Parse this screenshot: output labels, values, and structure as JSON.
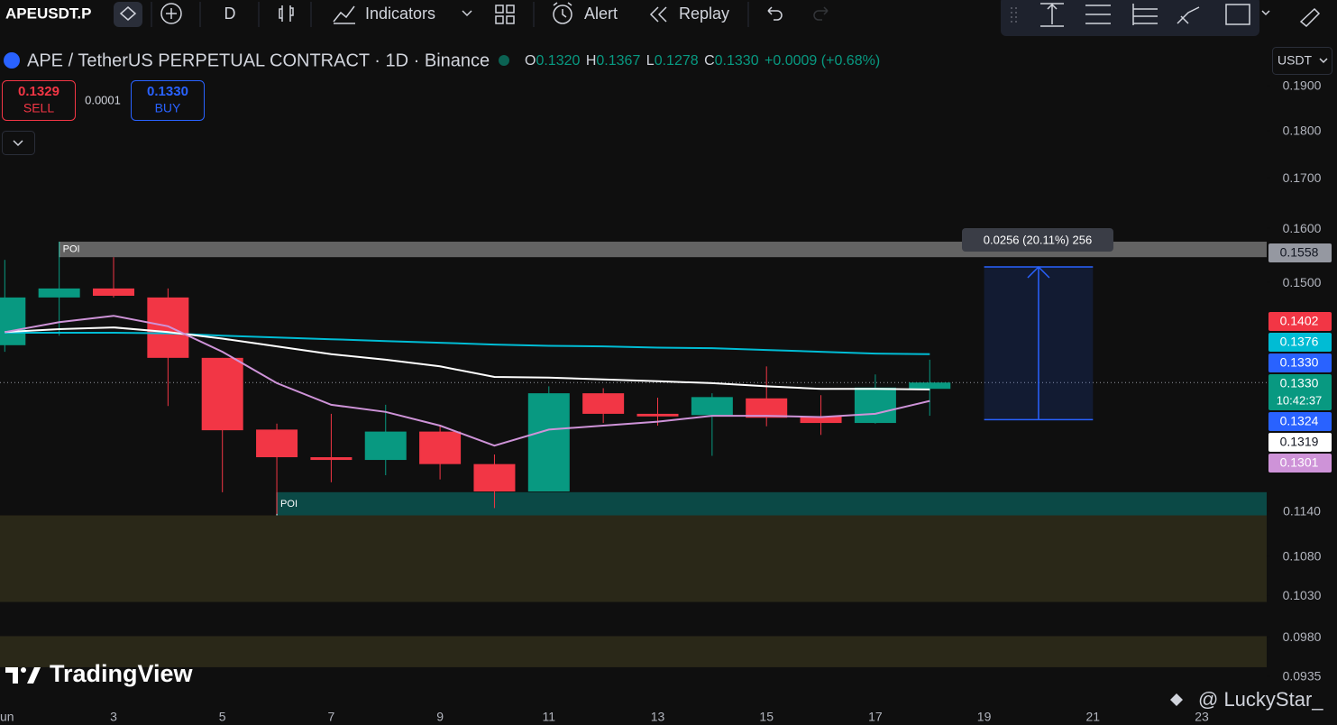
{
  "toolbar": {
    "symbol": "APEUSDT.P",
    "interval": "D",
    "indicators": "Indicators",
    "alert": "Alert",
    "replay": "Replay"
  },
  "legend": {
    "title": "APE / TetherUS PERPETUAL CONTRACT · 1D · Binance",
    "o_label": "O",
    "o": "0.1320",
    "h_label": "H",
    "h": "0.1367",
    "l_label": "L",
    "l": "0.1278",
    "c_label": "C",
    "c": "0.1330",
    "change": "+0.0009 (+0.68%)"
  },
  "trade": {
    "sell_price": "0.1329",
    "sell": "SELL",
    "spread": "0.0001",
    "buy_price": "0.1330",
    "buy": "BUY"
  },
  "currency": "USDT",
  "watermark": "TradingView",
  "credit": "@ LuckyStar_",
  "chart_data": {
    "type": "candlestick",
    "log_scale": true,
    "grid": false,
    "up_color": "#089981",
    "down_color": "#f23645",
    "categories": [
      "un",
      null,
      "3",
      null,
      "5",
      null,
      "7",
      null,
      "9",
      null,
      "11",
      null,
      "13",
      null,
      "15",
      null,
      "17",
      null,
      "19",
      null,
      "21",
      null,
      "23"
    ],
    "open": [
      0.1391,
      0.1473,
      0.1489,
      0.1473,
      0.137,
      0.1257,
      0.1216,
      0.1212,
      0.1254,
      0.1206,
      0.1167,
      0.1313,
      0.1281,
      0.1279,
      0.1305,
      0.1277,
      0.1267,
      0.132,
      null,
      null,
      null,
      null,
      null
    ],
    "high": [
      0.1541,
      0.1575,
      0.1546,
      0.1489,
      0.137,
      0.1266,
      0.1281,
      0.1295,
      0.1263,
      0.122,
      0.1324,
      0.1321,
      0.1306,
      0.1313,
      0.1356,
      0.131,
      0.1343,
      0.1367,
      null,
      null,
      null,
      null,
      null
    ],
    "low": [
      0.138,
      0.1407,
      0.1473,
      0.1293,
      0.1166,
      0.1136,
      0.118,
      0.119,
      0.1184,
      0.1144,
      0.1167,
      0.1267,
      0.1263,
      0.1218,
      0.1262,
      0.1249,
      0.1266,
      0.1278,
      null,
      null,
      null,
      null,
      null
    ],
    "close": [
      0.1473,
      0.1489,
      0.1476,
      0.137,
      0.1256,
      0.1216,
      0.1212,
      0.1254,
      0.1206,
      0.1167,
      0.1313,
      0.1281,
      0.1277,
      0.1307,
      0.1275,
      0.1267,
      0.1322,
      0.133,
      null,
      null,
      null,
      null,
      null
    ],
    "lines": [
      {
        "color": "#00bcd4",
        "values": [
          0.1412,
          0.1412,
          0.1412,
          0.1411,
          0.1407,
          0.1404,
          0.1401,
          0.1398,
          0.1395,
          0.1392,
          0.139,
          0.1389,
          0.1387,
          0.1386,
          0.1383,
          0.138,
          0.1377,
          0.1376,
          null,
          null,
          null,
          null,
          null
        ]
      },
      {
        "color": "#ffffff",
        "values": [
          0.1413,
          0.1418,
          0.1421,
          0.1413,
          0.1402,
          0.1389,
          0.1376,
          0.1367,
          0.1356,
          0.1339,
          0.1338,
          0.1335,
          0.1332,
          0.1329,
          0.1324,
          0.132,
          0.132,
          0.1319,
          null,
          null,
          null,
          null,
          null
        ]
      },
      {
        "color": "#ce93d8",
        "values": [
          0.1413,
          0.143,
          0.1441,
          0.1423,
          0.138,
          0.1329,
          0.1295,
          0.1284,
          0.1263,
          0.1233,
          0.1257,
          0.1263,
          0.1269,
          0.1278,
          0.1278,
          0.1276,
          0.1281,
          0.1301,
          null,
          null,
          null,
          null,
          null
        ]
      }
    ],
    "ylim": [
      0.0902,
      0.2005
    ],
    "yticks": [
      {
        "value": 0.19,
        "label": "0.1900"
      },
      {
        "value": 0.18,
        "label": "0.1800"
      },
      {
        "value": 0.17,
        "label": "0.1700"
      },
      {
        "value": 0.16,
        "label": "0.1600"
      },
      {
        "value": 0.15,
        "label": "0.1500"
      },
      {
        "value": 0.114,
        "label": "0.1140"
      },
      {
        "value": 0.108,
        "label": "0.1080"
      },
      {
        "value": 0.103,
        "label": "0.1030"
      },
      {
        "value": 0.098,
        "label": "0.0980"
      },
      {
        "value": 0.0935,
        "label": "0.0935"
      }
    ],
    "zones": [
      {
        "label": "POI",
        "range": [
          0.1546,
          0.1575
        ],
        "color": "#808080"
      },
      {
        "label": "POI",
        "range": [
          0.1133,
          0.1166
        ],
        "color": "#0b5e5a"
      },
      {
        "range": [
          0.1022,
          0.1134
        ],
        "color": "#2a2818"
      },
      {
        "range": [
          0.0945,
          0.0981
        ],
        "color": "#2a2818"
      }
    ],
    "measure": {
      "label": "0.0256 (20.11%) 256",
      "range": [
        0.1272,
        0.1528
      ],
      "color": "#2962ff"
    },
    "price_labels": [
      {
        "value": 0.1558,
        "label": "0.1558",
        "color": "#9598a1"
      },
      {
        "value": 0.1402,
        "label": "0.1402",
        "color": "#f23645"
      },
      {
        "value": 0.1376,
        "label": "0.1376",
        "color": "#00bcd4"
      },
      {
        "value": 0.133,
        "label": "0.1330",
        "color": "#2962ff"
      },
      {
        "value": 0.133,
        "label": "0.1330",
        "color": "#089981",
        "countdown": "10:42:37"
      },
      {
        "value": 0.1324,
        "label": "0.1324",
        "color": "#2962ff"
      },
      {
        "value": 0.1319,
        "label": "0.1319",
        "color": "#ffffff"
      },
      {
        "value": 0.1301,
        "label": "0.1301",
        "color": "#ce93d8"
      }
    ]
  }
}
